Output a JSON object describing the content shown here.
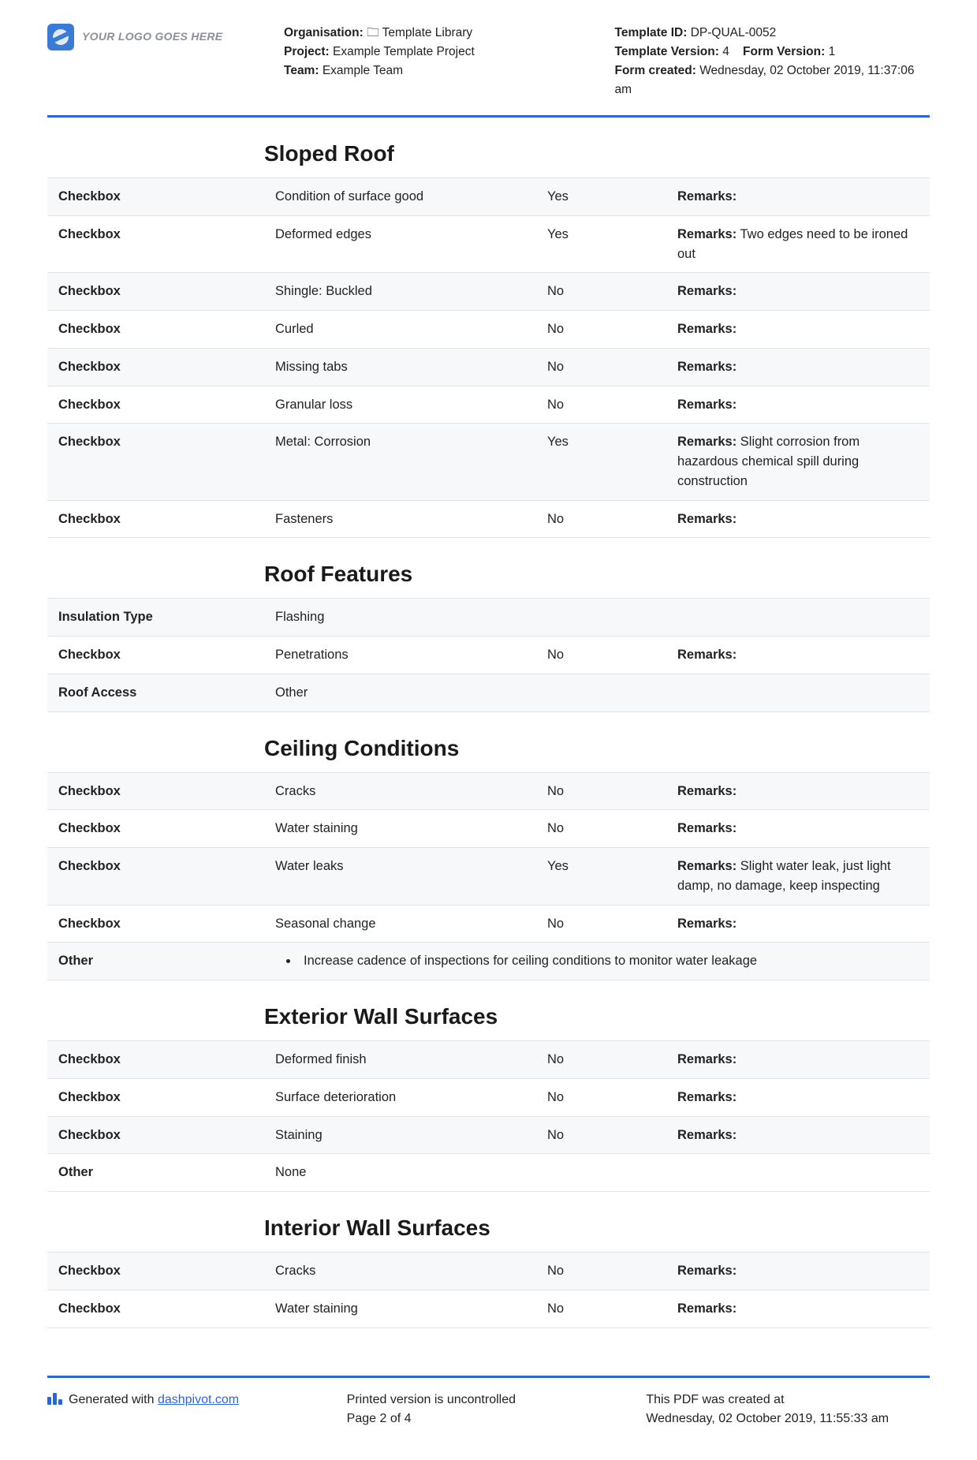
{
  "logo_placeholder": "YOUR LOGO GOES HERE",
  "header": {
    "left": {
      "organisation_label": "Organisation:",
      "organisation_value": "🗀 Template Library",
      "project_label": "Project:",
      "project_value": "Example Template Project",
      "team_label": "Team:",
      "team_value": "Example Team"
    },
    "right": {
      "template_id_label": "Template ID:",
      "template_id_value": "DP-QUAL-0052",
      "template_version_label": "Template Version:",
      "template_version_value": "4",
      "form_version_label": "Form Version:",
      "form_version_value": "1",
      "form_created_label": "Form created:",
      "form_created_value": "Wednesday, 02 October 2019, 11:37:06 am"
    }
  },
  "labels": {
    "checkbox": "Checkbox",
    "remarks": "Remarks:",
    "other": "Other"
  },
  "sections": [
    {
      "title": "Sloped Roof",
      "rows": [
        {
          "type": "check",
          "desc": "Condition of surface good",
          "val": "Yes",
          "rem": ""
        },
        {
          "type": "check",
          "desc": "Deformed edges",
          "val": "Yes",
          "rem": "Two edges need to be ironed out"
        },
        {
          "type": "check",
          "desc": "Shingle: Buckled",
          "val": "No",
          "rem": ""
        },
        {
          "type": "check",
          "desc": "Curled",
          "val": "No",
          "rem": ""
        },
        {
          "type": "check",
          "desc": "Missing tabs",
          "val": "No",
          "rem": ""
        },
        {
          "type": "check",
          "desc": "Granular loss",
          "val": "No",
          "rem": ""
        },
        {
          "type": "check",
          "desc": "Metal: Corrosion",
          "val": "Yes",
          "rem": "Slight corrosion from hazardous chemical spill during construction"
        },
        {
          "type": "check",
          "desc": "Fasteners",
          "val": "No",
          "rem": ""
        }
      ]
    },
    {
      "title": "Roof Features",
      "rows": [
        {
          "type": "plain",
          "label": "Insulation Type",
          "desc": "Flashing"
        },
        {
          "type": "check",
          "desc": "Penetrations",
          "val": "No",
          "rem": ""
        },
        {
          "type": "plain",
          "label": "Roof Access",
          "desc": "Other"
        }
      ]
    },
    {
      "title": "Ceiling Conditions",
      "rows": [
        {
          "type": "check",
          "desc": "Cracks",
          "val": "No",
          "rem": ""
        },
        {
          "type": "check",
          "desc": "Water staining",
          "val": "No",
          "rem": ""
        },
        {
          "type": "check",
          "desc": "Water leaks",
          "val": "Yes",
          "rem": "Slight water leak, just light damp, no damage, keep inspecting"
        },
        {
          "type": "check",
          "desc": "Seasonal change",
          "val": "No",
          "rem": ""
        },
        {
          "type": "bullet",
          "label": "Other",
          "item": "Increase cadence of inspections for ceiling conditions to monitor water leakage"
        }
      ]
    },
    {
      "title": "Exterior Wall Surfaces",
      "rows": [
        {
          "type": "check",
          "desc": "Deformed finish",
          "val": "No",
          "rem": ""
        },
        {
          "type": "check",
          "desc": "Surface deterioration",
          "val": "No",
          "rem": ""
        },
        {
          "type": "check",
          "desc": "Staining",
          "val": "No",
          "rem": ""
        },
        {
          "type": "plain",
          "label": "Other",
          "desc": "None"
        }
      ]
    },
    {
      "title": "Interior Wall Surfaces",
      "rows": [
        {
          "type": "check",
          "desc": "Cracks",
          "val": "No",
          "rem": ""
        },
        {
          "type": "check",
          "desc": "Water staining",
          "val": "No",
          "rem": ""
        }
      ]
    }
  ],
  "footer": {
    "generated_prefix": "Generated with ",
    "generated_link": "dashpivot.com",
    "mid_line1": "Printed version is uncontrolled",
    "mid_line2": "Page 2 of 4",
    "right_line1": "This PDF was created at",
    "right_line2": "Wednesday, 02 October 2019, 11:55:33 am"
  }
}
